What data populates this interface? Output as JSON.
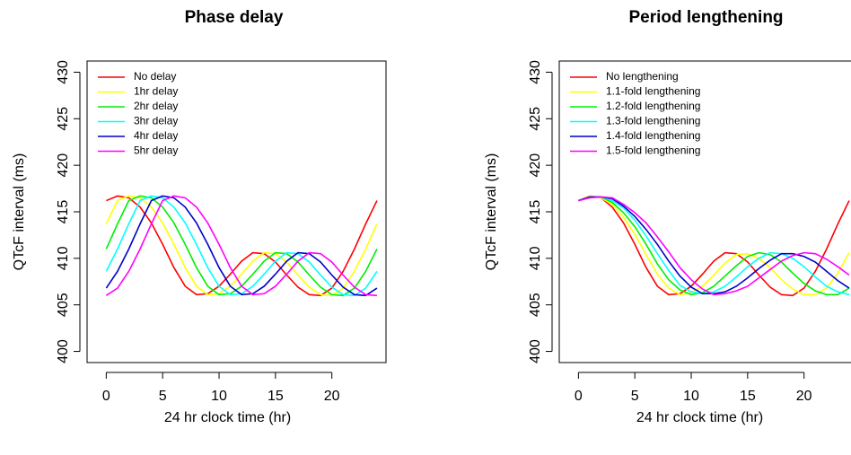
{
  "chart_data": [
    {
      "type": "line",
      "title": "Phase delay",
      "xlabel": "24 hr clock time (hr)",
      "ylabel": "QTcF interval (ms)",
      "x": [
        0,
        1,
        2,
        3,
        4,
        5,
        6,
        7,
        8,
        9,
        10,
        11,
        12,
        13,
        14,
        15,
        16,
        17,
        18,
        19,
        20,
        21,
        22,
        23,
        24
      ],
      "xlim": [
        -1.7,
        24.8
      ],
      "ylim": [
        398.8,
        431.2
      ],
      "xticks": [
        0,
        5,
        10,
        15,
        20
      ],
      "yticks": [
        400,
        405,
        410,
        415,
        420,
        425,
        430
      ],
      "legend": "topleft",
      "series": [
        {
          "name": "No delay",
          "color": "#ff0000",
          "values": [
            416.2,
            416.7,
            416.5,
            415.5,
            413.8,
            411.5,
            409.0,
            407.0,
            406.1,
            406.2,
            407.0,
            408.3,
            409.7,
            410.6,
            410.5,
            409.6,
            408.2,
            406.9,
            406.1,
            406.0,
            406.8,
            408.6,
            411.0,
            413.7,
            416.2
          ]
        },
        {
          "name": "1hr delay",
          "color": "#ffff00",
          "values": [
            413.7,
            416.2,
            416.7,
            416.5,
            415.5,
            413.8,
            411.5,
            409.0,
            407.0,
            406.1,
            406.2,
            407.0,
            408.3,
            409.7,
            410.6,
            410.5,
            409.6,
            408.2,
            406.9,
            406.1,
            406.0,
            406.8,
            408.6,
            411.0,
            413.7
          ]
        },
        {
          "name": "2hr delay",
          "color": "#00ee00",
          "values": [
            411.0,
            413.7,
            416.2,
            416.7,
            416.5,
            415.5,
            413.8,
            411.5,
            409.0,
            407.0,
            406.1,
            406.2,
            407.0,
            408.3,
            409.7,
            410.6,
            410.5,
            409.6,
            408.2,
            406.9,
            406.1,
            406.0,
            406.8,
            408.6,
            411.0
          ]
        },
        {
          "name": "3hr delay",
          "color": "#00ffff",
          "values": [
            408.6,
            411.0,
            413.7,
            416.2,
            416.7,
            416.5,
            415.5,
            413.8,
            411.5,
            409.0,
            407.0,
            406.1,
            406.2,
            407.0,
            408.3,
            409.7,
            410.6,
            410.5,
            409.6,
            408.2,
            406.9,
            406.1,
            406.0,
            406.8,
            408.6
          ]
        },
        {
          "name": "4hr delay",
          "color": "#0000cc",
          "values": [
            406.8,
            408.6,
            411.0,
            413.7,
            416.2,
            416.7,
            416.5,
            415.5,
            413.8,
            411.5,
            409.0,
            407.0,
            406.1,
            406.2,
            407.0,
            408.3,
            409.7,
            410.6,
            410.5,
            409.6,
            408.2,
            406.9,
            406.1,
            406.0,
            406.8
          ]
        },
        {
          "name": "5hr delay",
          "color": "#ff00ff",
          "values": [
            406.0,
            406.8,
            408.6,
            411.0,
            413.7,
            416.2,
            416.7,
            416.5,
            415.5,
            413.8,
            411.5,
            409.0,
            407.0,
            406.1,
            406.2,
            407.0,
            408.3,
            409.7,
            410.6,
            410.5,
            409.6,
            408.2,
            406.9,
            406.1,
            406.0
          ]
        }
      ]
    },
    {
      "type": "line",
      "title": "Period lengthening",
      "xlabel": "24 hr clock time (hr)",
      "ylabel": "QTcF interval (ms)",
      "x": [
        0,
        1,
        2,
        3,
        4,
        5,
        6,
        7,
        8,
        9,
        10,
        11,
        12,
        13,
        14,
        15,
        16,
        17,
        18,
        19,
        20,
        21,
        22,
        23,
        24
      ],
      "xlim": [
        -1.7,
        24.8
      ],
      "ylim": [
        398.8,
        431.2
      ],
      "xticks": [
        0,
        5,
        10,
        15,
        20
      ],
      "yticks": [
        400,
        405,
        410,
        415,
        420,
        425,
        430
      ],
      "legend": "topleft",
      "series": [
        {
          "name": "No lengthening",
          "color": "#ff0000",
          "values": [
            416.2,
            416.7,
            416.5,
            415.5,
            413.8,
            411.5,
            409.0,
            407.0,
            406.1,
            406.2,
            407.0,
            408.3,
            409.7,
            410.6,
            410.5,
            409.6,
            408.2,
            406.9,
            406.1,
            406.0,
            406.8,
            408.6,
            411.0,
            413.7,
            416.2
          ]
        },
        {
          "name": "1.1-fold lengthening",
          "color": "#ffff00",
          "values": [
            416.2,
            416.7,
            416.5,
            415.8,
            414.4,
            412.6,
            410.4,
            408.3,
            406.8,
            406.1,
            406.3,
            407.0,
            408.2,
            409.5,
            410.4,
            410.5,
            410.0,
            409.0,
            407.7,
            406.7,
            406.1,
            406.1,
            406.8,
            408.4,
            410.6
          ]
        },
        {
          "name": "1.2-fold lengthening",
          "color": "#00ee00",
          "values": [
            416.2,
            416.6,
            416.6,
            416.0,
            414.9,
            413.4,
            411.5,
            409.4,
            407.7,
            406.6,
            406.1,
            406.3,
            407.0,
            408.1,
            409.2,
            410.2,
            410.6,
            410.4,
            409.6,
            408.4,
            407.3,
            406.5,
            406.1,
            406.1,
            406.8
          ]
        },
        {
          "name": "1.3-fold lengthening",
          "color": "#00ffff",
          "values": [
            416.2,
            416.6,
            416.6,
            416.2,
            415.4,
            414.1,
            412.4,
            410.5,
            408.7,
            407.1,
            406.4,
            406.2,
            406.4,
            407.0,
            408.0,
            409.1,
            410.0,
            410.6,
            410.5,
            410.0,
            409.1,
            408.0,
            407.0,
            406.4,
            406.1
          ]
        },
        {
          "name": "1.4-fold lengthening",
          "color": "#0000cc",
          "values": [
            416.2,
            416.6,
            416.6,
            416.4,
            415.6,
            414.5,
            413.1,
            411.5,
            409.7,
            408.1,
            406.9,
            406.2,
            406.2,
            406.4,
            407.0,
            407.9,
            408.9,
            409.8,
            410.5,
            410.5,
            410.2,
            409.6,
            408.6,
            407.6,
            406.8
          ]
        },
        {
          "name": "1.5-fold lengthening",
          "color": "#ff00ff",
          "values": [
            416.2,
            416.5,
            416.6,
            416.5,
            415.8,
            414.9,
            413.8,
            412.3,
            410.7,
            409.0,
            407.7,
            406.7,
            406.1,
            406.2,
            406.5,
            407.0,
            407.9,
            408.8,
            409.7,
            410.3,
            410.6,
            410.5,
            409.9,
            409.1,
            408.2
          ]
        }
      ]
    }
  ]
}
